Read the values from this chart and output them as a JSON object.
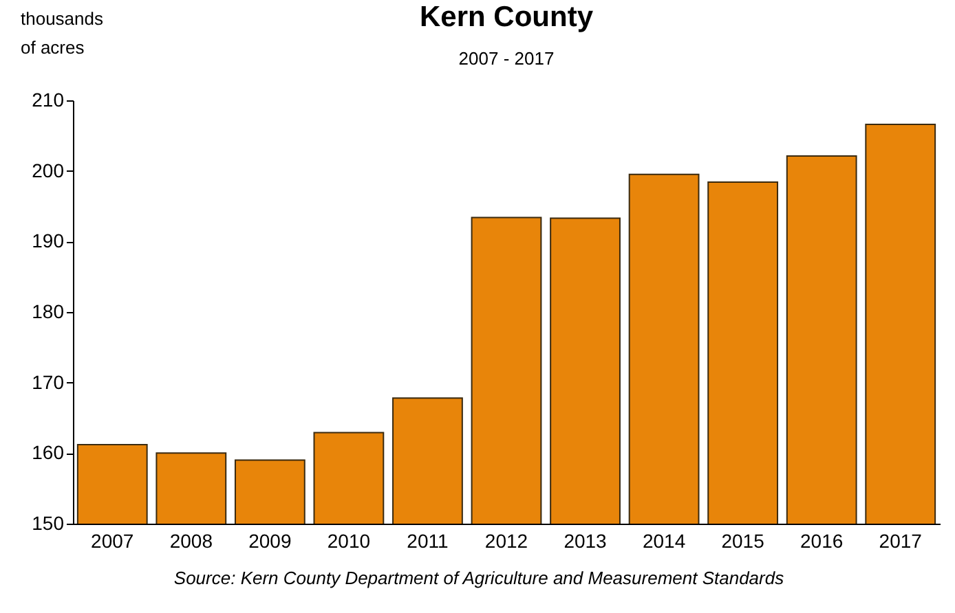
{
  "chart_data": {
    "type": "bar",
    "title": "Kern County",
    "subtitle": "2007 - 2017",
    "ylabel": "thousands\nof acres",
    "annotations": [
      "Source: Kern County Department of Agriculture and Measurement Standards"
    ],
    "categories": [
      "2007",
      "2008",
      "2009",
      "2010",
      "2011",
      "2012",
      "2013",
      "2014",
      "2015",
      "2016",
      "2017"
    ],
    "values": [
      161.2,
      160.0,
      159.0,
      162.9,
      167.8,
      193.4,
      193.3,
      199.5,
      198.4,
      202.1,
      206.6
    ],
    "color": "#e8850a",
    "ylim": [
      150,
      210
    ],
    "yticks": [
      150,
      160,
      170,
      180,
      190,
      200,
      210
    ],
    "grid": false
  }
}
